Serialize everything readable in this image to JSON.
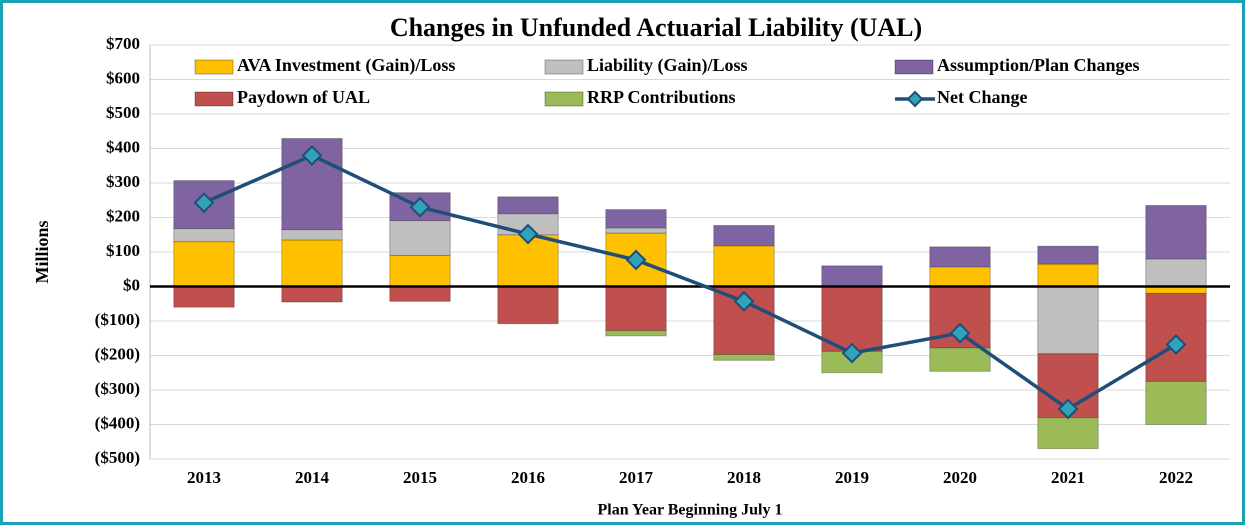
{
  "chart_data": {
    "type": "stacked_bar_line",
    "title": "Changes in Unfunded Actuarial Liability (UAL)",
    "x_label": "Plan Year Beginning July 1",
    "y_label": "Millions",
    "categories": [
      "2013",
      "2014",
      "2015",
      "2016",
      "2017",
      "2018",
      "2019",
      "2020",
      "2021",
      "2022"
    ],
    "series": [
      {
        "name": "AVA Investment (Gain)/Loss",
        "color": "#ffc000",
        "values": [
          130,
          135,
          90,
          150,
          155,
          118,
          null,
          57,
          65,
          -20
        ]
      },
      {
        "name": "Liability (Gain)/Loss",
        "color": "#bfbfbf",
        "values": [
          38,
          30,
          101,
          61,
          15,
          null,
          null,
          null,
          -195,
          80
        ]
      },
      {
        "name": "Assumption/Plan Changes",
        "color": "#8064a2",
        "values": [
          139,
          264,
          81,
          49,
          53,
          59,
          60,
          58,
          52,
          155
        ]
      },
      {
        "name": "Paydown of UAL",
        "color": "#c0504d",
        "values": [
          -60,
          -45,
          -43,
          -108,
          -128,
          -197,
          -188,
          -178,
          -185,
          -255
        ]
      },
      {
        "name": "RRP Contributions",
        "color": "#9bbb59",
        "values": [
          null,
          null,
          null,
          null,
          -15,
          -17,
          -62,
          -68,
          -90,
          -125
        ]
      },
      {
        "name": "Net Change",
        "color": "#1f4e79",
        "marker_color": "#31a2b8",
        "type": "line",
        "values": [
          243,
          380,
          230,
          152,
          77,
          -43,
          -193,
          -135,
          -355,
          -168
        ]
      }
    ],
    "ylim": [
      -500,
      700
    ],
    "yticks": [
      {
        "value": 700,
        "label": "$700"
      },
      {
        "value": 600,
        "label": "$600"
      },
      {
        "value": 500,
        "label": "$500"
      },
      {
        "value": 400,
        "label": "$400"
      },
      {
        "value": 300,
        "label": "$300"
      },
      {
        "value": 200,
        "label": "$200"
      },
      {
        "value": 100,
        "label": "$100"
      },
      {
        "value": 0,
        "label": "$0"
      },
      {
        "value": -100,
        "label": "($100)"
      },
      {
        "value": -200,
        "label": "($200)"
      },
      {
        "value": -300,
        "label": "($300)"
      },
      {
        "value": -400,
        "label": "($400)"
      },
      {
        "value": -500,
        "label": "($500)"
      }
    ],
    "grid": true,
    "legend": "top",
    "border_color": "#17a2b8"
  }
}
